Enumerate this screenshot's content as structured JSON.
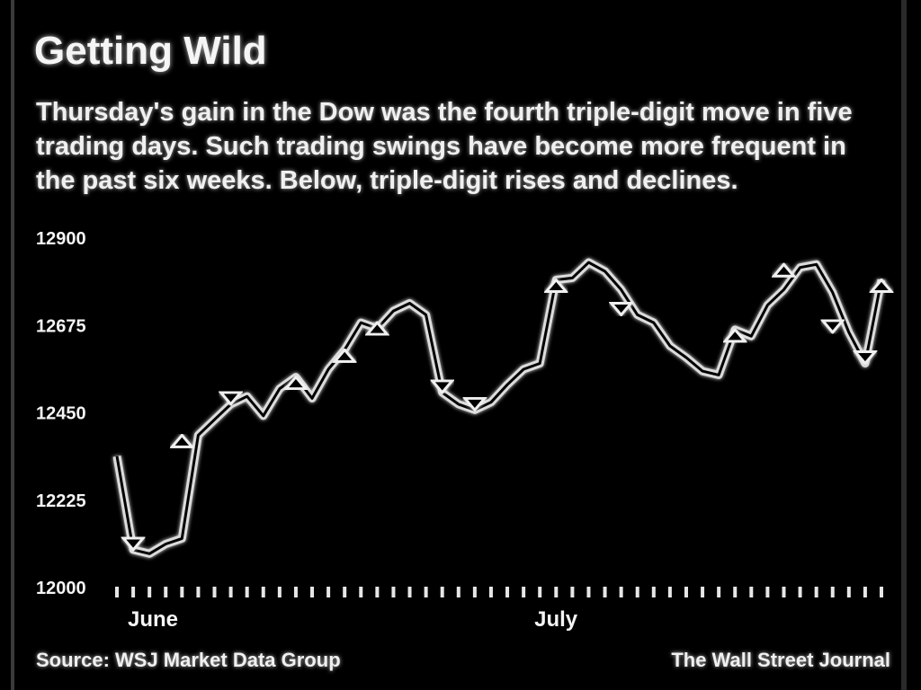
{
  "header": {
    "title": "Getting Wild",
    "subtitle": "Thursday's gain in the Dow was the fourth triple-digit move in five trading days. Such trading swings have become more frequent in the past six weeks. Below, triple-digit rises and declines."
  },
  "footer": {
    "source": "Source: WSJ Market Data Group",
    "credit": "The Wall Street Journal"
  },
  "colors": {
    "background": "#000000",
    "foreground": "#f2f2f2",
    "grid": "#e6e6e6"
  },
  "chart_data": {
    "type": "line",
    "title": "Getting Wild",
    "xlabel": "",
    "ylabel": "",
    "ylim": [
      12000,
      12900
    ],
    "yticks": [
      12000,
      12225,
      12450,
      12675,
      12900
    ],
    "ytick_labels": [
      "12000",
      "12225",
      "12450",
      "12675",
      "12900"
    ],
    "x_ticks_count": 47,
    "x_month_labels": [
      {
        "label": "June",
        "index": 0
      },
      {
        "label": "July",
        "index": 25
      }
    ],
    "grid": true,
    "legend": "none",
    "series": [
      {
        "values": [
          12336,
          12095,
          12085,
          12110,
          12124,
          12390,
          12430,
          12470,
          12490,
          12440,
          12510,
          12540,
          12485,
          12560,
          12610,
          12680,
          12665,
          12710,
          12730,
          12700,
          12500,
          12470,
          12455,
          12475,
          12520,
          12560,
          12575,
          12790,
          12795,
          12835,
          12812,
          12765,
          12700,
          12680,
          12620,
          12590,
          12555,
          12545,
          12662,
          12645,
          12725,
          12765,
          12822,
          12830,
          12758,
          12655,
          12575,
          12790
        ]
      }
    ],
    "moves": [
      {
        "index": 1,
        "from": 12336,
        "to": 12095
      },
      {
        "index": 4,
        "from": 12124,
        "to": 12390
      },
      {
        "index": 7,
        "from": 12560,
        "to": 12470
      },
      {
        "index": 11,
        "from": 12470,
        "to": 12540
      },
      {
        "index": 14,
        "from": 12530,
        "to": 12610
      },
      {
        "index": 16,
        "from": 12610,
        "to": 12680
      },
      {
        "index": 20,
        "from": 12700,
        "to": 12500
      },
      {
        "index": 22,
        "from": 12545,
        "to": 12455
      },
      {
        "index": 27,
        "from": 12575,
        "to": 12790
      },
      {
        "index": 31,
        "from": 12812,
        "to": 12700
      },
      {
        "index": 38,
        "from": 12545,
        "to": 12662
      },
      {
        "index": 41,
        "from": 12725,
        "to": 12830
      },
      {
        "index": 44,
        "from": 12830,
        "to": 12655
      },
      {
        "index": 46,
        "from": 12655,
        "to": 12575
      },
      {
        "index": 47,
        "from": 12575,
        "to": 12790
      }
    ]
  }
}
